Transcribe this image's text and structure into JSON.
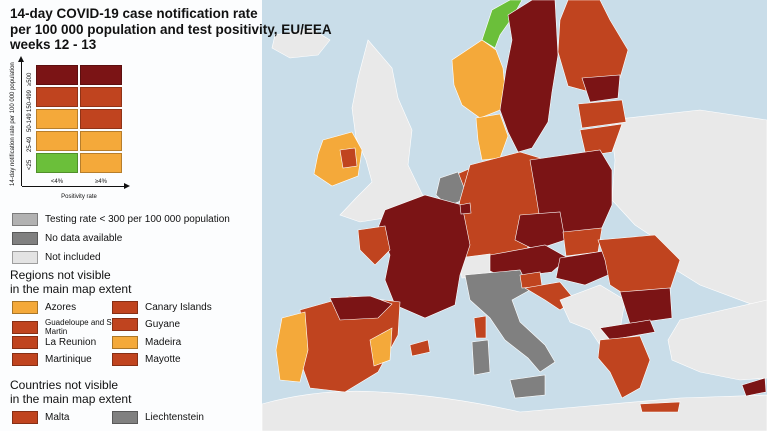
{
  "title": {
    "line1": "14-day COVID-19 case notification rate",
    "line2": "per 100 000 population and test positivity, EU/EEA",
    "line3": "weeks 12 - 13"
  },
  "colors": {
    "sea": "#c9dde9",
    "non_eu_land": "#e9e9e9",
    "dark_red": "#7b1415",
    "red": "#c0441f",
    "orange": "#f4a93a",
    "green": "#6bbf3a",
    "low_testing": "#b2b2b2",
    "no_data": "#808080",
    "not_included": "#e3e3e3"
  },
  "matrix": {
    "y_axis_label": "14-day notification rate per 100 000 population",
    "x_axis_label": "Positivity rate",
    "columns": [
      "<4%",
      "≥4%"
    ],
    "rows": [
      {
        "label": "≥500",
        "cells": [
          "dark_red",
          "dark_red"
        ]
      },
      {
        "label": "150-499",
        "cells": [
          "red",
          "red"
        ]
      },
      {
        "label": "50-149",
        "cells": [
          "orange",
          "red"
        ]
      },
      {
        "label": "25-49",
        "cells": [
          "orange",
          "orange"
        ]
      },
      {
        "label": "<25",
        "cells": [
          "green",
          "orange"
        ]
      }
    ]
  },
  "status_legend": [
    {
      "label": "Testing rate < 300 per 100 000 population",
      "color": "low_testing"
    },
    {
      "label": "No data available",
      "color": "no_data"
    },
    {
      "label": "Not included",
      "color": "not_included"
    }
  ],
  "regions_heading": {
    "line1": "Regions not visible",
    "line2": "in the main map extent"
  },
  "regions": [
    {
      "label": "Azores",
      "color": "orange"
    },
    {
      "label": "Canary Islands",
      "color": "red"
    },
    {
      "label": "Guadeloupe and Saint Martin",
      "color": "red",
      "small": true
    },
    {
      "label": "Guyane",
      "color": "red"
    },
    {
      "label": "La Reunion",
      "color": "red"
    },
    {
      "label": "Madeira",
      "color": "orange"
    },
    {
      "label": "Martinique",
      "color": "red"
    },
    {
      "label": "Mayotte",
      "color": "red"
    }
  ],
  "countries_heading": {
    "line1": "Countries not visible",
    "line2": "in the main map extent"
  },
  "countries": [
    {
      "label": "Malta",
      "color": "red"
    },
    {
      "label": "Liechtenstein",
      "color": "no_data"
    }
  ],
  "map_regions": [
    {
      "name": "uk",
      "color": "non_eu_land"
    },
    {
      "name": "norway-south",
      "color": "orange"
    },
    {
      "name": "norway-north",
      "color": "green"
    },
    {
      "name": "sweden",
      "color": "dark_red"
    },
    {
      "name": "finland",
      "color": "red"
    },
    {
      "name": "estonia",
      "color": "dark_red"
    },
    {
      "name": "latvia",
      "color": "red"
    },
    {
      "name": "lithuania",
      "color": "red"
    },
    {
      "name": "denmark",
      "color": "orange"
    },
    {
      "name": "ireland",
      "color": "orange"
    },
    {
      "name": "ireland-east",
      "color": "red"
    },
    {
      "name": "iceland-excluded",
      "color": "non_eu_land"
    },
    {
      "name": "netherlands",
      "color": "red"
    },
    {
      "name": "belgium",
      "color": "no_data"
    },
    {
      "name": "luxembourg",
      "color": "dark_red"
    },
    {
      "name": "france",
      "color": "dark_red"
    },
    {
      "name": "france-west",
      "color": "red"
    },
    {
      "name": "germany",
      "color": "red"
    },
    {
      "name": "poland",
      "color": "dark_red"
    },
    {
      "name": "czechia",
      "color": "dark_red"
    },
    {
      "name": "slovakia",
      "color": "red"
    },
    {
      "name": "austria",
      "color": "dark_red"
    },
    {
      "name": "hungary",
      "color": "dark_red"
    },
    {
      "name": "switzerland",
      "color": "non_eu_land"
    },
    {
      "name": "italy",
      "color": "no_data"
    },
    {
      "name": "sicily",
      "color": "no_data"
    },
    {
      "name": "sardinia",
      "color": "no_data"
    },
    {
      "name": "corsica",
      "color": "red"
    },
    {
      "name": "slovenia",
      "color": "red"
    },
    {
      "name": "croatia",
      "color": "red"
    },
    {
      "name": "balkans-non-eu",
      "color": "non_eu_land"
    },
    {
      "name": "romania",
      "color": "red"
    },
    {
      "name": "bulgaria",
      "color": "dark_red"
    },
    {
      "name": "greece",
      "color": "red"
    },
    {
      "name": "greece-north",
      "color": "dark_red"
    },
    {
      "name": "crete",
      "color": "red"
    },
    {
      "name": "cyprus",
      "color": "dark_red"
    },
    {
      "name": "spain",
      "color": "red"
    },
    {
      "name": "spain-north",
      "color": "dark_red"
    },
    {
      "name": "spain-east",
      "color": "orange"
    },
    {
      "name": "portugal",
      "color": "orange"
    },
    {
      "name": "balearic",
      "color": "red"
    },
    {
      "name": "ukraine-belarus",
      "color": "non_eu_land"
    },
    {
      "name": "africa",
      "color": "non_eu_land"
    },
    {
      "name": "turkey",
      "color": "non_eu_land"
    }
  ]
}
